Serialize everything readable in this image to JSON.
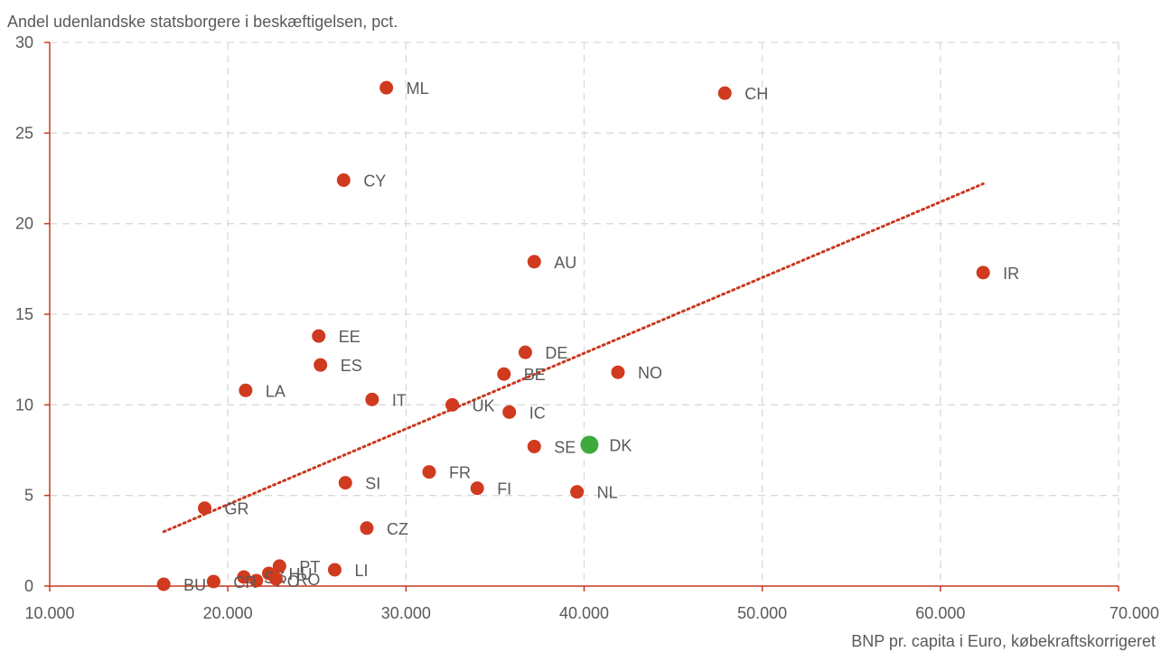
{
  "chart_data": {
    "type": "scatter",
    "title": "",
    "ylabel": "Andel udenlandske statsborgere i beskæftigelsen, pct.",
    "xlabel": "BNP pr. capita i Euro, købekraftskorrigeret",
    "xlim": [
      10000,
      70000
    ],
    "ylim": [
      0,
      30
    ],
    "xticks": [
      10000,
      20000,
      30000,
      40000,
      50000,
      60000,
      70000
    ],
    "xtick_labels": [
      "10.000",
      "20.000",
      "30.000",
      "40.000",
      "50.000",
      "60.000",
      "70.000"
    ],
    "yticks": [
      0,
      5,
      10,
      15,
      20,
      25,
      30
    ],
    "ytick_labels": [
      "0",
      "5",
      "10",
      "15",
      "20",
      "25",
      "30"
    ],
    "grid": true,
    "colors": {
      "point": "#D03A1E",
      "highlight": "#3CAB3C",
      "trend": "#C9381E",
      "axis": "#C9381E",
      "grid": "#D9D9D9",
      "text": "#595959"
    },
    "points": [
      {
        "label": "ML",
        "x": 28900,
        "y": 27.5
      },
      {
        "label": "CH",
        "x": 47900,
        "y": 27.2
      },
      {
        "label": "CY",
        "x": 26500,
        "y": 22.4
      },
      {
        "label": "AU",
        "x": 37200,
        "y": 17.9
      },
      {
        "label": "IR",
        "x": 62400,
        "y": 17.3
      },
      {
        "label": "EE",
        "x": 25100,
        "y": 13.8
      },
      {
        "label": "DE",
        "x": 36700,
        "y": 12.9
      },
      {
        "label": "ES",
        "x": 25200,
        "y": 12.2
      },
      {
        "label": "NO",
        "x": 41900,
        "y": 11.8
      },
      {
        "label": "BE",
        "x": 35500,
        "y": 11.7
      },
      {
        "label": "LA",
        "x": 21000,
        "y": 10.8
      },
      {
        "label": "IT",
        "x": 28100,
        "y": 10.3
      },
      {
        "label": "UK",
        "x": 32600,
        "y": 10.0
      },
      {
        "label": "IC",
        "x": 35800,
        "y": 9.6
      },
      {
        "label": "SE",
        "x": 37200,
        "y": 7.7
      },
      {
        "label": "DK",
        "x": 40300,
        "y": 7.8,
        "highlight": true
      },
      {
        "label": "FR",
        "x": 31300,
        "y": 6.3
      },
      {
        "label": "SI",
        "x": 26600,
        "y": 5.7
      },
      {
        "label": "FI",
        "x": 34000,
        "y": 5.4
      },
      {
        "label": "NL",
        "x": 39600,
        "y": 5.2
      },
      {
        "label": "GR",
        "x": 18700,
        "y": 4.3
      },
      {
        "label": "CZ",
        "x": 27800,
        "y": 3.2
      },
      {
        "label": "PT",
        "x": 22900,
        "y": 1.1
      },
      {
        "label": "LI",
        "x": 26000,
        "y": 0.9
      },
      {
        "label": "HU",
        "x": 22300,
        "y": 0.7
      },
      {
        "label": "SK",
        "x": 20900,
        "y": 0.5
      },
      {
        "label": "PO",
        "x": 21600,
        "y": 0.3
      },
      {
        "label": "RO",
        "x": 22700,
        "y": 0.4
      },
      {
        "label": "CR",
        "x": 19200,
        "y": 0.25
      },
      {
        "label": "BU",
        "x": 16400,
        "y": 0.1
      }
    ],
    "trendline": {
      "x": [
        16400,
        62400
      ],
      "y": [
        3.0,
        22.2
      ]
    }
  }
}
